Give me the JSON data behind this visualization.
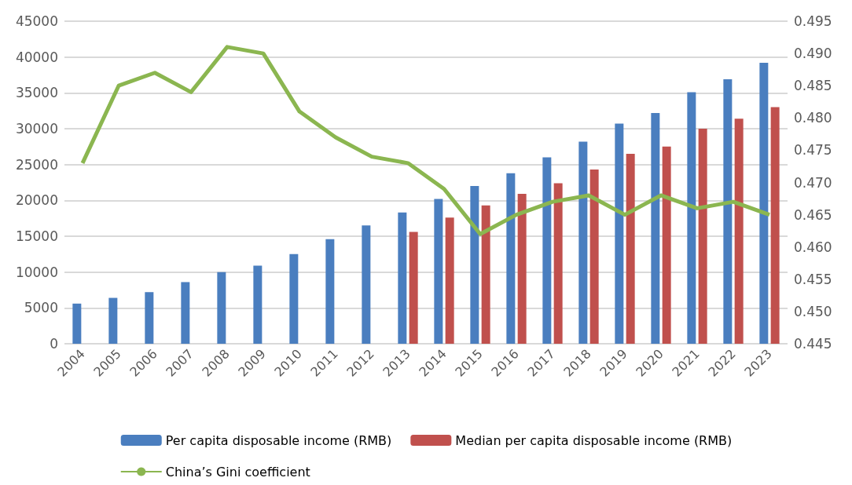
{
  "chart_data": {
    "type": "bar",
    "categories": [
      "2004",
      "2005",
      "2006",
      "2007",
      "2008",
      "2009",
      "2010",
      "2011",
      "2012",
      "2013",
      "2014",
      "2015",
      "2016",
      "2017",
      "2018",
      "2019",
      "2020",
      "2021",
      "2022",
      "2023"
    ],
    "series": [
      {
        "name": "Per capita disposable income (RMB)",
        "color": "#4a7ebf",
        "values": [
          5600,
          6400,
          7200,
          8600,
          10000,
          10900,
          12500,
          14600,
          16500,
          18300,
          20200,
          22000,
          23800,
          26000,
          28200,
          30700,
          32200,
          35100,
          36900,
          39200
        ]
      },
      {
        "name": "Median per capita disposable income (RMB)",
        "color": "#c0504d",
        "values": [
          null,
          null,
          null,
          null,
          null,
          null,
          null,
          null,
          null,
          15600,
          17600,
          19300,
          20900,
          22400,
          24300,
          26500,
          27500,
          30000,
          31400,
          33000
        ]
      },
      {
        "name": "China’s Gini coefficient",
        "type": "line",
        "axis": "y2",
        "color": "#8bb650",
        "values": [
          0.473,
          0.485,
          0.487,
          0.484,
          0.491,
          0.49,
          0.481,
          0.477,
          0.474,
          0.473,
          0.469,
          0.462,
          0.465,
          0.467,
          0.468,
          0.465,
          0.468,
          0.466,
          0.467,
          0.465
        ]
      }
    ],
    "ylim": [
      0,
      45000
    ],
    "yticks": [
      0,
      5000,
      10000,
      15000,
      20000,
      25000,
      30000,
      35000,
      40000,
      45000
    ],
    "y2lim": [
      0.445,
      0.495
    ],
    "y2ticks": [
      0.445,
      {
        "value": 0.45,
        "label": "0.450"
      },
      0.455,
      {
        "value": 0.46,
        "label": "0.460"
      },
      0.465,
      {
        "value": 0.47,
        "label": "0.470"
      },
      0.475,
      {
        "value": 0.48,
        "label": "0.480"
      },
      0.485,
      {
        "value": 0.49,
        "label": "0.490"
      },
      0.495
    ],
    "grid": "y",
    "legend": "bottom",
    "marker": "none"
  }
}
